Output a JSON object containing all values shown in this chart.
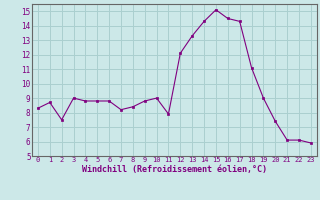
{
  "x": [
    0,
    1,
    2,
    3,
    4,
    5,
    6,
    7,
    8,
    9,
    10,
    11,
    12,
    13,
    14,
    15,
    16,
    17,
    18,
    19,
    20,
    21,
    22,
    23
  ],
  "y": [
    8.3,
    8.7,
    7.5,
    9.0,
    8.8,
    8.8,
    8.8,
    8.2,
    8.4,
    8.8,
    9.0,
    7.9,
    12.1,
    13.3,
    14.3,
    15.1,
    14.5,
    14.3,
    11.1,
    9.0,
    7.4,
    6.1,
    6.1,
    5.9
  ],
  "line_color": "#800080",
  "marker_color": "#800080",
  "bg_color": "#cce8e8",
  "grid_color": "#aacfcf",
  "xlabel": "Windchill (Refroidissement éolien,°C)",
  "xlim": [
    -0.5,
    23.5
  ],
  "ylim": [
    5,
    15.5
  ],
  "xticks": [
    0,
    1,
    2,
    3,
    4,
    5,
    6,
    7,
    8,
    9,
    10,
    11,
    12,
    13,
    14,
    15,
    16,
    17,
    18,
    19,
    20,
    21,
    22,
    23
  ],
  "yticks": [
    5,
    6,
    7,
    8,
    9,
    10,
    11,
    12,
    13,
    14,
    15
  ]
}
